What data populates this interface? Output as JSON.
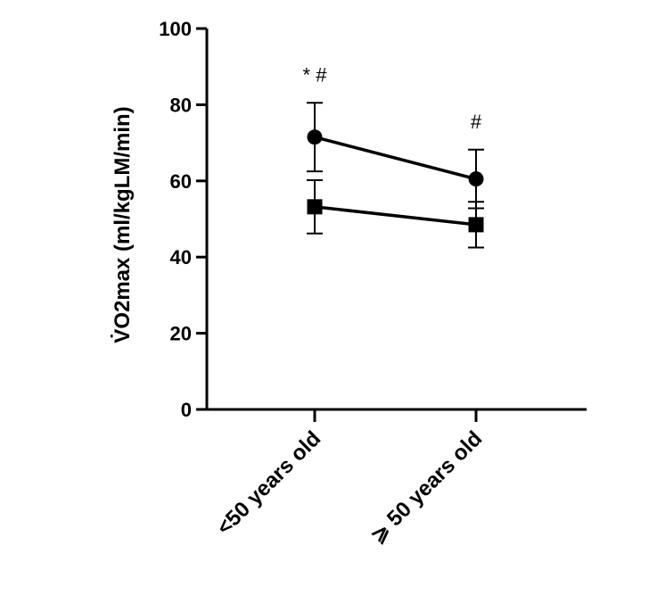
{
  "chart_data": {
    "type": "line",
    "title": "",
    "xlabel": "",
    "ylabel": "V̇O2max (ml/kgLM/min)",
    "ylim": [
      0,
      100
    ],
    "yticks": [
      "0",
      "20",
      "40",
      "60",
      "80",
      "100"
    ],
    "categories": [
      "<50 years old",
      "⩾ 50 years old"
    ],
    "series": [
      {
        "marker": "circle",
        "values": [
          71.5,
          60.5
        ],
        "error": [
          9.0,
          7.7
        ],
        "color": "#000000"
      },
      {
        "marker": "square",
        "values": [
          53.2,
          48.5
        ],
        "error": [
          7.0,
          6.0
        ],
        "color": "#000000"
      }
    ],
    "annotations": [
      {
        "category": 0,
        "text": "* #"
      },
      {
        "category": 1,
        "text": "#"
      }
    ],
    "grid": false,
    "legend": "none"
  }
}
